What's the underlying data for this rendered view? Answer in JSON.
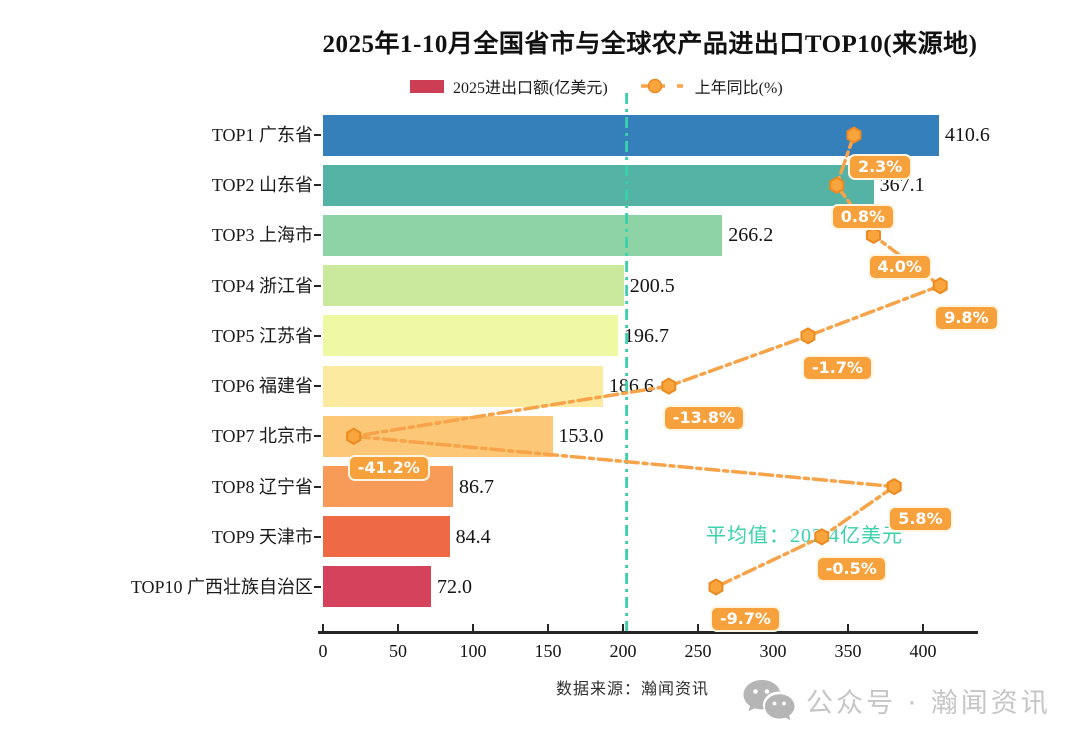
{
  "title": "2025年1-10月全国省市与全球农产品进出口TOP10(来源地)",
  "legend": {
    "bar_label": "2025进出口额(亿美元)",
    "line_label": "上年同比(%)",
    "bar_swatch_color": "#cb3e54"
  },
  "chart_data": {
    "type": "bar",
    "orientation": "horizontal",
    "title": "2025年1-10月全国省市与全球农产品进出口TOP10(来源地)",
    "categories": [
      "TOP1 广东省",
      "TOP2 山东省",
      "TOP3 上海市",
      "TOP4 浙江省",
      "TOP5 江苏省",
      "TOP6 福建省",
      "TOP7 北京市",
      "TOP8 辽宁省",
      "TOP9 天津市",
      "TOP10 广西壮族自治区"
    ],
    "series": [
      {
        "name": "2025进出口额(亿美元)",
        "type": "bar",
        "values": [
          410.6,
          367.1,
          266.2,
          200.5,
          196.7,
          186.6,
          153.0,
          86.7,
          84.4,
          72.0
        ],
        "value_labels": [
          "410.6",
          "367.1",
          "266.2",
          "200.5",
          "196.7",
          "186.6",
          "153.0",
          "86.7",
          "84.4",
          "72.0"
        ],
        "bar_colors": [
          "#3580bb",
          "#55b3a5",
          "#8ed3a5",
          "#cbe99c",
          "#eff8a3",
          "#fdeaa1",
          "#fcc776",
          "#f99b58",
          "#ed6a45",
          "#d5425c"
        ]
      },
      {
        "name": "上年同比(%)",
        "type": "line",
        "values": [
          2.3,
          0.8,
          4.0,
          9.8,
          -1.7,
          -13.8,
          -41.2,
          5.8,
          -0.5,
          -9.7
        ],
        "value_labels": [
          "2.3%",
          "0.8%",
          "4.0%",
          "9.8%",
          "-1.7%",
          "-13.8%",
          "-41.2%",
          "5.8%",
          "-0.5%",
          "-9.7%"
        ],
        "line_color": "#f7a349",
        "marker_fill": "#f9a53e",
        "marker_edge": "#ec8a20",
        "badge_color": "#f7a13c"
      }
    ],
    "x_axis": {
      "ticks": [
        0,
        50,
        100,
        150,
        200,
        250,
        300,
        350,
        400
      ],
      "tick_labels": [
        "0",
        "50",
        "100",
        "150",
        "200",
        "250",
        "300",
        "350",
        "400"
      ],
      "range": [
        0,
        436
      ]
    },
    "mean_line": {
      "value": 202.4,
      "label": "平均值：202.4亿美元",
      "color": "#3ad1ad"
    },
    "grid": false,
    "legend_position": "top"
  },
  "footer": {
    "source": "数据来源：瀚闻资讯",
    "watermark": "公众号 · 瀚闻资讯"
  },
  "colors": {
    "axis": "#262626",
    "watermark_text": "#c6c6c6",
    "watermark_icon": "#b5b5b5"
  }
}
